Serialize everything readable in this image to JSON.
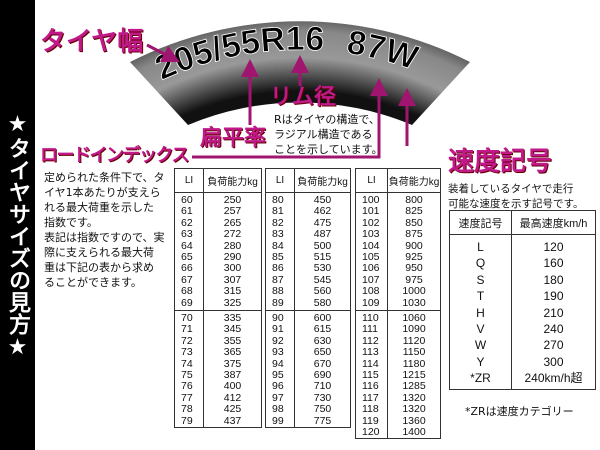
{
  "side_title": "★タイヤサイズの見方★",
  "tire": {
    "size": "205/55R16",
    "service": "87W"
  },
  "labels": {
    "width": "タイヤ幅",
    "aspect": "扁平率",
    "rim": "リム径",
    "rim_note": "Rはタイヤの構造で、\nラジアル構造である\nことを示しています。",
    "load": "ロードインデックス",
    "load_note": "定められた条件下で、タ\nイヤ1本あたりが支えら\nれる最大荷重を示した\n指数です。\n表記は指数ですので、実\n際に支えられる最大荷\n重は下記の表から求め\nることができます。",
    "speed": "速度記号",
    "speed_note": "装着しているタイヤで走行\n可能な速度を示す記号です。"
  },
  "accent_color": "#c0198a",
  "load_table": {
    "headers": [
      "LI",
      "負荷能力kg"
    ],
    "columns": [
      {
        "groups": [
          {
            "li": "60\n61\n62\n63\n64\n65\n66\n67\n68\n69",
            "kg": "250\n257\n265\n272\n280\n290\n300\n307\n315\n325"
          },
          {
            "li": "70\n71\n72\n73\n74\n75\n76\n77\n78\n79",
            "kg": "335\n345\n355\n365\n375\n387\n400\n412\n425\n437"
          }
        ]
      },
      {
        "groups": [
          {
            "li": "80\n81\n82\n83\n84\n85\n86\n87\n88\n89",
            "kg": "450\n462\n475\n487\n500\n515\n530\n545\n560\n580"
          },
          {
            "li": "90\n91\n92\n93\n94\n95\n96\n97\n98\n99",
            "kg": "600\n615\n630\n650\n670\n690\n710\n730\n750\n775"
          }
        ]
      },
      {
        "groups": [
          {
            "li": "100\n101\n102\n103\n104\n105\n106\n107\n108\n109",
            "kg": "800\n825\n850\n875\n900\n925\n950\n975\n1000\n1030"
          },
          {
            "li": "110\n111\n112\n113\n114\n115\n116\n117\n118\n119\n120",
            "kg": "1060\n1090\n1120\n1150\n1180\n1215\n1285\n1320\n1320\n1360\n1400"
          }
        ]
      }
    ]
  },
  "speed_table": {
    "headers": [
      "速度記号",
      "最高速度km/h"
    ],
    "symbols": "L\nQ\nS\nT\nH\nV\nW\nY\n*ZR",
    "speeds": "120\n160\n180\n190\n210\n240\n270\n300\n240km/h超",
    "footnote": "*ZRは速度カテゴリー"
  }
}
